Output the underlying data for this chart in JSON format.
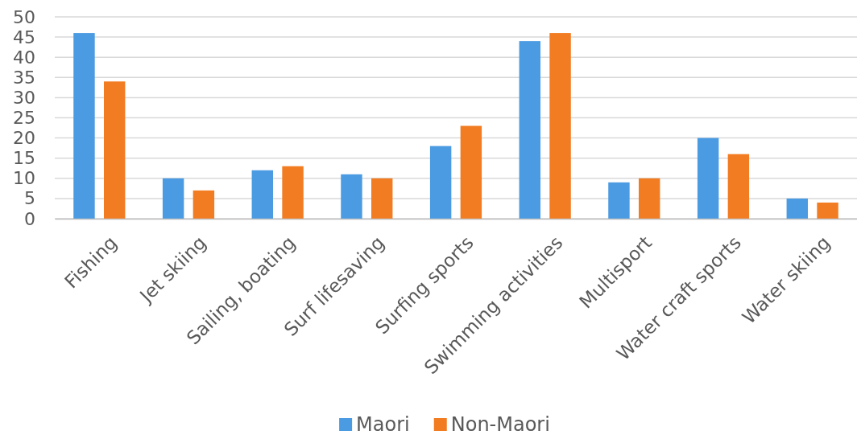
{
  "chart_data": {
    "type": "bar",
    "categories": [
      "Fishing",
      "Jet skiing",
      "Sailing, boating",
      "Surf lifesaving",
      "Surfing sports",
      "Swimming activities",
      "Multisport",
      "Water craft sports",
      "Water skiing"
    ],
    "series": [
      {
        "name": "Maori",
        "color": "#4b9be2",
        "values": [
          46,
          10,
          12,
          11,
          18,
          44,
          9,
          20,
          5
        ]
      },
      {
        "name": "Non-Maori",
        "color": "#f27c22",
        "values": [
          34,
          7,
          13,
          10,
          23,
          46,
          10,
          16,
          4
        ]
      }
    ],
    "ylim": [
      0,
      50
    ],
    "yticks": [
      0,
      5,
      10,
      15,
      20,
      25,
      30,
      35,
      40,
      45,
      50
    ],
    "grid": "y",
    "legend": "bottom"
  }
}
